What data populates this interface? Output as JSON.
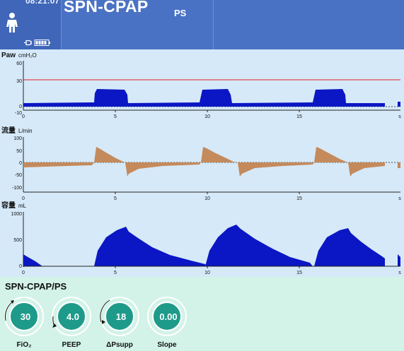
{
  "header": {
    "clock": "08:21:07",
    "mode_title": "SPN-CPAP",
    "mode_sub": "PS",
    "icons": [
      "person-icon",
      "plug-icon",
      "battery-icon"
    ]
  },
  "waveforms": [
    {
      "id": "paw",
      "title": "Paw",
      "unit": "cmH₂O",
      "y_ticks": [
        "60",
        "30",
        "0",
        "-10"
      ],
      "x_ticks": [
        "0",
        "5",
        "10",
        "15"
      ],
      "x_unit": "s",
      "fill": "#0b17c4",
      "limit_line": 35
    },
    {
      "id": "flow",
      "title": "流量",
      "unit": "L/min",
      "y_ticks": [
        "100",
        "50",
        "0",
        "-50",
        "-100"
      ],
      "x_ticks": [
        "0",
        "5",
        "10",
        "15"
      ],
      "x_unit": "s",
      "fill": "#c48a5c"
    },
    {
      "id": "volume",
      "title": "容量",
      "unit": "mL",
      "y_ticks": [
        "1000",
        "500",
        "0"
      ],
      "x_ticks": [
        "0",
        "5",
        "10",
        "15"
      ],
      "x_unit": "s",
      "fill": "#0b17c4"
    }
  ],
  "panel": {
    "title": "SPN-CPAP/PS",
    "knobs": [
      {
        "value": "30",
        "label": "FiO₂"
      },
      {
        "value": "4.0",
        "label": "PEEP"
      },
      {
        "value": "18",
        "label": "ΔPsupp"
      },
      {
        "value": "0.00",
        "label": "Slope"
      }
    ]
  }
}
